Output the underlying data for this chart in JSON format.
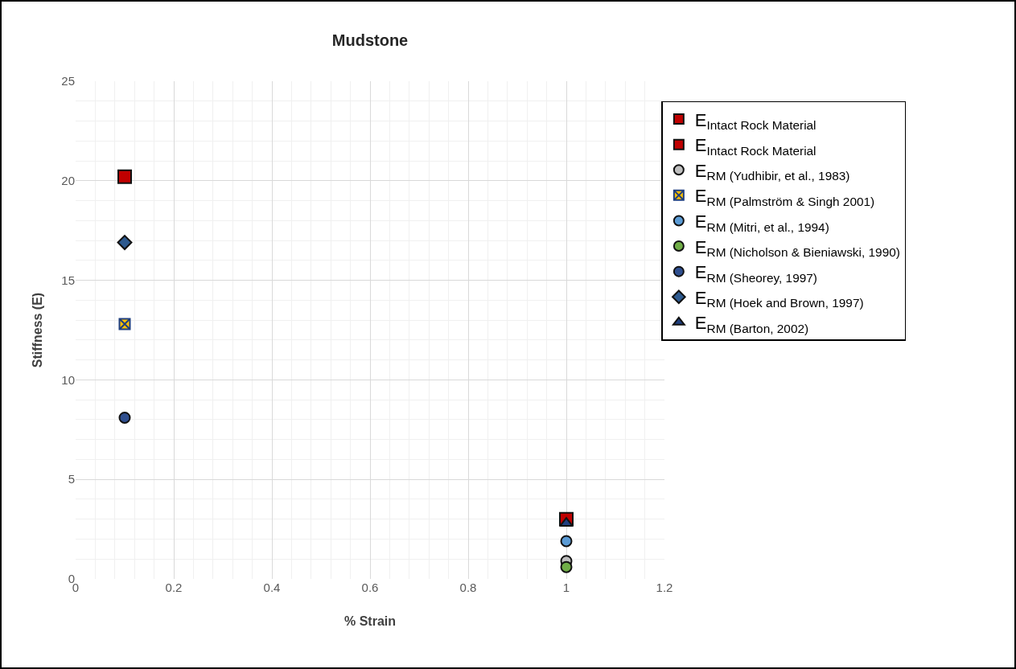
{
  "chart_data": {
    "type": "scatter",
    "title": "Mudstone",
    "xlabel": "% Strain",
    "ylabel": "Stiffness (E)",
    "xlim": [
      0,
      1.2
    ],
    "xticks": [
      0,
      0.2,
      0.4,
      0.6,
      0.8,
      1,
      1.2
    ],
    "ylim": [
      0,
      25
    ],
    "yticks": [
      0,
      5,
      10,
      15,
      20,
      25
    ],
    "grid": true,
    "legend": "right",
    "x": [
      0.1,
      1
    ],
    "series": [
      {
        "name": "E$_{Intact Rock Material}$",
        "color": "#c00000",
        "marker": "square",
        "values": [
          20.2,
          null
        ]
      },
      {
        "name": "E$_{Intact Rock Material}$",
        "color": "#c00000",
        "marker": "square",
        "values": [
          null,
          3.0
        ]
      },
      {
        "name": "E$_{RM (Yudhibir, et al., 1983)}$",
        "color": "#bfbfbf",
        "marker": "circle",
        "values": [
          null,
          0.9
        ]
      },
      {
        "name": "E$_{RM (Palmström & Singh 2001)}$",
        "color": "#ffc000",
        "marker": "cross",
        "values": [
          12.8,
          null
        ]
      },
      {
        "name": "E$_{RM (Mitri, et al., 1994)}$",
        "color": "#5b9bd5",
        "marker": "circle",
        "values": [
          null,
          1.9
        ]
      },
      {
        "name": "E$_{RM (Nicholson & Bieniawski, 1990)}$",
        "color": "#70ad47",
        "marker": "circle",
        "values": [
          null,
          0.6
        ]
      },
      {
        "name": "E$_{RM (Sheorey, 1997)}$",
        "color": "#2f4f8f",
        "marker": "circle",
        "values": [
          8.1,
          null
        ]
      },
      {
        "name": "E$_{RM (Hoek and Brown, 1997)}$",
        "color": "#2e5a8f",
        "marker": "diamond",
        "values": [
          16.9,
          null
        ]
      },
      {
        "name": "E$_{RM (Barton, 2002)}$",
        "color": "#1f3f7f",
        "marker": "triangle",
        "values": [
          null,
          2.8
        ]
      }
    ]
  }
}
